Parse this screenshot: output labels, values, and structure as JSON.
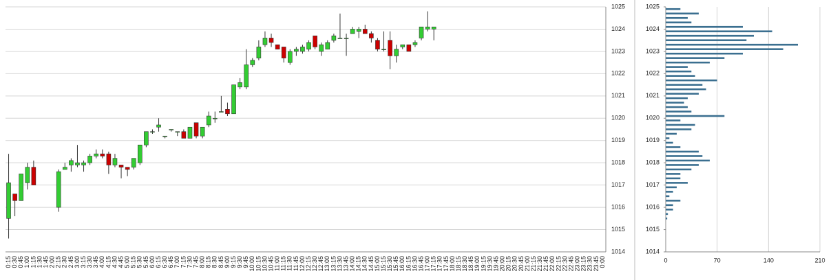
{
  "chart_data": [
    {
      "type": "candlestick",
      "categories": [
        "0:15",
        "0:30",
        "0:45",
        "1:00",
        "1:15",
        "1:30",
        "1:45",
        "2:00",
        "2:15",
        "2:30",
        "2:45",
        "3:00",
        "3:15",
        "3:30",
        "3:45",
        "4:00",
        "4:15",
        "4:30",
        "4:45",
        "5:00",
        "5:15",
        "5:30",
        "5:45",
        "6:00",
        "6:15",
        "6:30",
        "6:45",
        "7:00",
        "7:15",
        "7:30",
        "7:45",
        "8:00",
        "8:15",
        "8:30",
        "8:45",
        "9:00",
        "9:15",
        "9:30",
        "9:45",
        "10:00",
        "10:15",
        "10:30",
        "10:45",
        "11:00",
        "11:15",
        "11:30",
        "11:45",
        "12:00",
        "12:15",
        "12:30",
        "12:45",
        "13:00",
        "13:15",
        "13:30",
        "13:45",
        "14:00",
        "14:15",
        "14:30",
        "14:45",
        "15:00",
        "15:15",
        "15:30",
        "15:45",
        "16:00",
        "16:15",
        "16:30",
        "16:45",
        "17:00",
        "17:15",
        "17:30",
        "17:45",
        "18:00",
        "18:15",
        "18:30",
        "18:45",
        "19:00",
        "19:15",
        "19:30",
        "19:45",
        "20:00",
        "20:15",
        "20:30",
        "20:45",
        "21:00",
        "21:15",
        "21:30",
        "21:45",
        "22:00",
        "22:15",
        "22:30",
        "22:45",
        "23:00",
        "23:15",
        "23:30",
        "23:45",
        "0:00"
      ],
      "open": [
        1015.5,
        1016.6,
        1016.3,
        1017.1,
        1017.8,
        null,
        null,
        null,
        1016.0,
        1017.7,
        1017.9,
        1017.9,
        1017.9,
        1018.0,
        1018.3,
        1018.4,
        1018.4,
        1017.9,
        1017.9,
        1017.8,
        1017.8,
        1018.0,
        1018.8,
        1019.4,
        1019.6,
        1019.2,
        1019.5,
        1019.4,
        1019.4,
        1019.1,
        1019.8,
        1019.2,
        1019.7,
        1020.0,
        1020.3,
        1020.4,
        1020.2,
        1021.4,
        1021.4,
        1022.4,
        1022.7,
        1023.3,
        1023.6,
        1023.3,
        1023.2,
        1022.5,
        1023.0,
        1023.0,
        1023.1,
        1023.7,
        1023.0,
        1023.1,
        1023.5,
        1023.6,
        1023.6,
        1023.8,
        1023.9,
        1024.0,
        1023.8,
        1023.5,
        1023.1,
        1023.5,
        1022.8,
        1023.2,
        1023.3,
        1023.3,
        1023.6,
        1024.0,
        1024.0,
        null,
        null,
        null,
        null,
        null,
        null,
        null,
        null,
        null,
        null,
        null,
        null,
        null,
        null,
        null,
        null,
        null,
        null,
        null,
        null,
        null,
        null,
        null,
        null,
        null,
        null,
        null
      ],
      "high": [
        1018.4,
        1016.6,
        1017.5,
        1018.0,
        1018.1,
        null,
        null,
        null,
        1017.7,
        1018.0,
        1018.2,
        1018.8,
        1018.1,
        1018.4,
        1018.6,
        1018.6,
        1018.5,
        1018.4,
        1017.9,
        1017.8,
        1018.2,
        1018.8,
        1019.4,
        1019.5,
        1020.0,
        1019.2,
        1019.5,
        1019.4,
        1019.5,
        1019.6,
        1019.8,
        1019.6,
        1020.3,
        1020.3,
        1021.0,
        1020.7,
        1021.5,
        1021.8,
        1023.1,
        1022.7,
        1023.5,
        1023.9,
        1023.8,
        1023.3,
        1023.2,
        1023.1,
        1023.2,
        1023.3,
        1023.5,
        1023.7,
        1023.4,
        1023.5,
        1023.8,
        1024.7,
        1023.8,
        1024.1,
        1024.1,
        1024.2,
        1023.9,
        1023.6,
        1023.9,
        1023.9,
        1023.3,
        1023.3,
        1023.3,
        1023.5,
        1024.1,
        1024.8,
        1024.1,
        null,
        null,
        null,
        null,
        null,
        null,
        null,
        null,
        null,
        null,
        null,
        null,
        null,
        null,
        null,
        null,
        null,
        null,
        null,
        null,
        null,
        null,
        null,
        null,
        null,
        null,
        null
      ],
      "low": [
        1014.6,
        1015.6,
        1016.3,
        1016.8,
        1017.0,
        null,
        null,
        null,
        1015.8,
        1017.7,
        1017.6,
        1017.8,
        1017.6,
        1017.9,
        1018.2,
        1018.2,
        1017.5,
        1017.8,
        1017.3,
        1017.4,
        1017.7,
        1017.9,
        1018.7,
        1019.3,
        1019.4,
        1019.1,
        1019.4,
        1019.2,
        1019.1,
        1019.1,
        1019.1,
        1019.1,
        1019.6,
        1019.8,
        1020.3,
        1020.1,
        1020.2,
        1021.3,
        1021.3,
        1022.3,
        1022.6,
        1023.2,
        1023.2,
        1023.1,
        1022.5,
        1022.4,
        1022.8,
        1022.9,
        1023.0,
        1023.1,
        1022.8,
        1023.1,
        1023.4,
        1023.6,
        1022.8,
        1023.8,
        1023.6,
        1023.8,
        1023.4,
        1023.0,
        1023.0,
        1022.2,
        1022.5,
        1023.1,
        1023.0,
        1023.2,
        1023.5,
        1023.9,
        1023.5,
        null,
        null,
        null,
        null,
        null,
        null,
        null,
        null,
        null,
        null,
        null,
        null,
        null,
        null,
        null,
        null,
        null,
        null,
        null,
        null,
        null,
        null,
        null,
        null,
        null,
        null,
        null
      ],
      "close": [
        1017.1,
        1016.3,
        1017.5,
        1017.8,
        1017.0,
        null,
        null,
        null,
        1017.6,
        1017.8,
        1018.1,
        1018.0,
        1018.0,
        1018.3,
        1018.4,
        1018.3,
        1017.9,
        1018.2,
        1017.8,
        1017.7,
        1018.2,
        1018.8,
        1019.4,
        1019.4,
        1019.7,
        1019.2,
        1019.5,
        1019.4,
        1019.1,
        1019.6,
        1019.2,
        1019.6,
        1020.1,
        1020.0,
        1020.3,
        1020.2,
        1021.5,
        1021.6,
        1022.4,
        1022.6,
        1023.2,
        1023.6,
        1023.4,
        1023.1,
        1022.7,
        1023.0,
        1023.1,
        1023.2,
        1023.4,
        1023.2,
        1023.3,
        1023.4,
        1023.7,
        1023.6,
        1023.6,
        1024.0,
        1024.0,
        1023.8,
        1023.6,
        1023.1,
        1023.1,
        1022.8,
        1023.1,
        1023.3,
        1023.0,
        1023.4,
        1024.1,
        1024.1,
        1024.1,
        null,
        null,
        null,
        null,
        null,
        null,
        null,
        null,
        null,
        null,
        null,
        null,
        null,
        null,
        null,
        null,
        null,
        null,
        null,
        null,
        null,
        null,
        null,
        null,
        null,
        null,
        null
      ],
      "up_color": "#33cc33",
      "down_color": "#cc0000",
      "ylim": [
        1014,
        1025
      ],
      "yticks": [
        1014,
        1015,
        1016,
        1017,
        1018,
        1019,
        1020,
        1021,
        1022,
        1023,
        1024,
        1025
      ],
      "grid": true
    },
    {
      "type": "histogram",
      "orientation": "horizontal",
      "color": "#3b6f90",
      "bins": [
        1015.4,
        1015.6,
        1015.8,
        1016.0,
        1016.2,
        1016.4,
        1016.6,
        1016.8,
        1017.0,
        1017.2,
        1017.4,
        1017.6,
        1017.8,
        1018.0,
        1018.2,
        1018.4,
        1018.6,
        1018.8,
        1019.0,
        1019.2,
        1019.4,
        1019.6,
        1019.8,
        1020.0,
        1020.2,
        1020.4,
        1020.6,
        1020.8,
        1021.0,
        1021.2,
        1021.4,
        1021.6,
        1021.8,
        1022.0,
        1022.2,
        1022.4,
        1022.6,
        1022.8,
        1023.0,
        1023.2,
        1023.4,
        1023.6,
        1023.8,
        1024.0,
        1024.2,
        1024.4,
        1024.6,
        1024.8,
        1025.0
      ],
      "counts": [
        2,
        3,
        10,
        10,
        20,
        5,
        10,
        15,
        30,
        20,
        20,
        35,
        45,
        60,
        50,
        45,
        20,
        10,
        5,
        15,
        35,
        40,
        20,
        80,
        35,
        30,
        25,
        30,
        45,
        55,
        50,
        70,
        40,
        35,
        30,
        60,
        80,
        105,
        160,
        180,
        110,
        120,
        145,
        105,
        35,
        30,
        45,
        20
      ],
      "xlim": [
        0,
        210
      ],
      "xticks": [
        0,
        70,
        140,
        210
      ],
      "ylim": [
        1014,
        1025
      ],
      "yticks": [
        1014,
        1015,
        1016,
        1017,
        1018,
        1019,
        1020,
        1021,
        1022,
        1023,
        1024,
        1025
      ],
      "grid": true
    }
  ]
}
